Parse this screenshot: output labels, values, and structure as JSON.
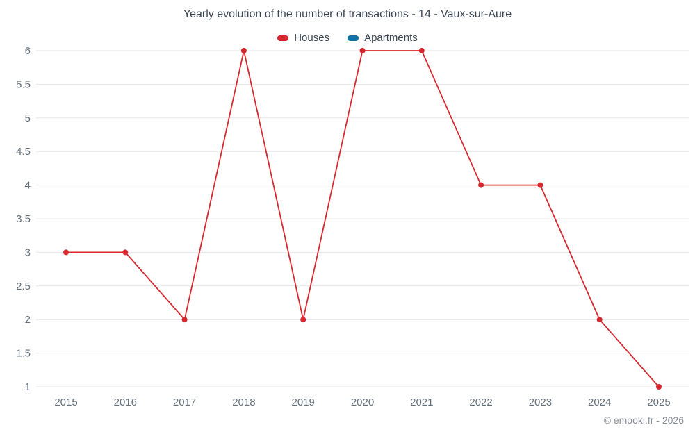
{
  "title": "Yearly evolution of the number of transactions - 14 - Vaux-sur-Aure",
  "watermark": "© emooki.fr - 2026",
  "legend": [
    {
      "label": "Houses",
      "color": "#d7282f"
    },
    {
      "label": "Apartments",
      "color": "#1272a2"
    }
  ],
  "colors": {
    "houses": "#d7282f",
    "apartments": "#1272a2",
    "grid": "#e7e7e7",
    "axis_text": "#66707a",
    "title_text": "#3c4654",
    "watermark_text": "#8a9099"
  },
  "chart_data": {
    "type": "line",
    "title": "Yearly evolution of the number of transactions - 14 - Vaux-sur-Aure",
    "x": [
      2015,
      2016,
      2017,
      2018,
      2019,
      2020,
      2021,
      2022,
      2023,
      2024,
      2025
    ],
    "series": [
      {
        "name": "Houses",
        "color": "#d7282f",
        "values": [
          3,
          3,
          2,
          6,
          2,
          6,
          6,
          4,
          4,
          2,
          1
        ]
      },
      {
        "name": "Apartments",
        "color": "#1272a2",
        "values": []
      }
    ],
    "xlabel": "",
    "ylabel": "",
    "ylim": [
      1,
      6
    ],
    "ytick_step": 0.5,
    "grid": true,
    "legend_position": "top",
    "marker": "circle"
  }
}
